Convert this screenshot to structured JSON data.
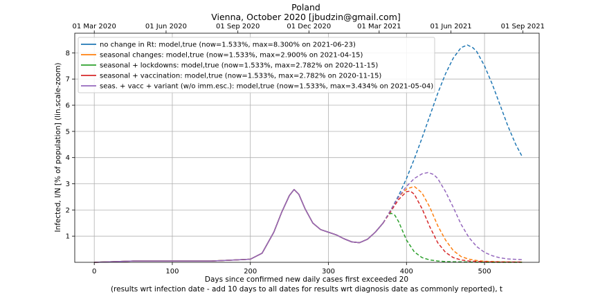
{
  "chart_data": {
    "type": "line",
    "title": "Poland",
    "subtitle": "Vienna, October 2020 [jbudzin@gmail.com]",
    "xlabel": "Days since confirmed new daily cases first exceeded 20",
    "xlabel_line2": "(results wrt infection date - add 10 days to all dates for results wrt diagnosis date as commonly reported), t",
    "ylabel": "Infected, I/N [% of population] (lin.scale-zoom)",
    "xlim": [
      -25,
      570
    ],
    "ylim": [
      0,
      8.75
    ],
    "xticks": [
      0,
      100,
      200,
      300,
      400,
      500
    ],
    "yticks": [
      1,
      2,
      3,
      4,
      5,
      6,
      7,
      8
    ],
    "top_axis_ticks": [
      {
        "x": 0,
        "label": "01 Mar 2020"
      },
      {
        "x": 92,
        "label": "01 Jun 2020"
      },
      {
        "x": 184,
        "label": "01 Sep 2020"
      },
      {
        "x": 275,
        "label": "01 Dec 2020"
      },
      {
        "x": 365,
        "label": "01 Mar 2021"
      },
      {
        "x": 457,
        "label": "01 Jun 2021"
      },
      {
        "x": 549,
        "label": "01 Sep 2021"
      }
    ],
    "grid": true,
    "legend_position": "top-left",
    "common_history": {
      "x": [
        0,
        20,
        50,
        100,
        150,
        180,
        200,
        215,
        230,
        240,
        250,
        256,
        262,
        270,
        280,
        290,
        300,
        310,
        320,
        330,
        340,
        350,
        360,
        370
      ],
      "y": [
        0.0,
        0.02,
        0.05,
        0.05,
        0.05,
        0.09,
        0.12,
        0.35,
        1.15,
        1.9,
        2.55,
        2.78,
        2.6,
        2.05,
        1.5,
        1.25,
        1.15,
        1.05,
        0.9,
        0.78,
        0.75,
        0.88,
        1.15,
        1.5
      ]
    },
    "series": [
      {
        "name": "no change in Rt: model,true (now=1.533%, max=8.300% on 2021-06-23)",
        "color": "#1f77b4",
        "x": [
          370,
          380,
          390,
          400,
          410,
          420,
          430,
          440,
          450,
          460,
          470,
          478,
          485,
          490,
          500,
          510,
          520,
          530,
          540,
          548
        ],
        "y": [
          1.5,
          2.0,
          2.55,
          3.2,
          3.95,
          4.75,
          5.6,
          6.45,
          7.2,
          7.8,
          8.2,
          8.3,
          8.2,
          8.05,
          7.5,
          6.8,
          6.0,
          5.2,
          4.5,
          4.05
        ]
      },
      {
        "name": "seasonal changes: model,true (now=1.533%, max=2.900% on 2021-04-15)",
        "color": "#ff7f0e",
        "x": [
          370,
          380,
          390,
          400,
          410,
          420,
          430,
          440,
          450,
          460,
          470,
          480,
          490,
          500,
          520,
          548
        ],
        "y": [
          1.5,
          2.0,
          2.5,
          2.8,
          2.9,
          2.65,
          2.1,
          1.4,
          0.85,
          0.45,
          0.22,
          0.12,
          0.07,
          0.04,
          0.02,
          0.01
        ]
      },
      {
        "name": "seasonal + lockdowns: model,true (now=1.533%, max=2.782% on 2020-11-15)",
        "color": "#2ca02c",
        "x": [
          370,
          375,
          380,
          385,
          390,
          395,
          400,
          410,
          420,
          430,
          440,
          450,
          460,
          480,
          500,
          548
        ],
        "y": [
          1.5,
          1.75,
          1.88,
          1.8,
          1.55,
          1.2,
          0.85,
          0.4,
          0.18,
          0.09,
          0.05,
          0.03,
          0.02,
          0.01,
          0.0,
          0.0
        ]
      },
      {
        "name": "seasonal + vaccination: model,true (now=1.533%, max=2.782% on 2020-11-15)",
        "color": "#d62728",
        "x": [
          370,
          380,
          390,
          400,
          405,
          410,
          420,
          430,
          440,
          450,
          460,
          470,
          480,
          500,
          520,
          548
        ],
        "y": [
          1.5,
          1.95,
          2.4,
          2.7,
          2.72,
          2.6,
          2.05,
          1.35,
          0.75,
          0.38,
          0.18,
          0.09,
          0.05,
          0.02,
          0.01,
          0.01
        ]
      },
      {
        "name": "seas. + vacc + variant (w/o imm.esc.): model,true (now=1.533%, max=3.434% on 2021-05-04)",
        "color": "#9467bd",
        "x": [
          370,
          380,
          390,
          400,
          410,
          420,
          428,
          435,
          440,
          450,
          460,
          470,
          480,
          490,
          500,
          510,
          520,
          530,
          548
        ],
        "y": [
          1.5,
          2.0,
          2.5,
          2.9,
          3.2,
          3.38,
          3.43,
          3.35,
          3.2,
          2.7,
          2.1,
          1.45,
          0.95,
          0.6,
          0.38,
          0.25,
          0.17,
          0.13,
          0.1
        ]
      }
    ]
  }
}
